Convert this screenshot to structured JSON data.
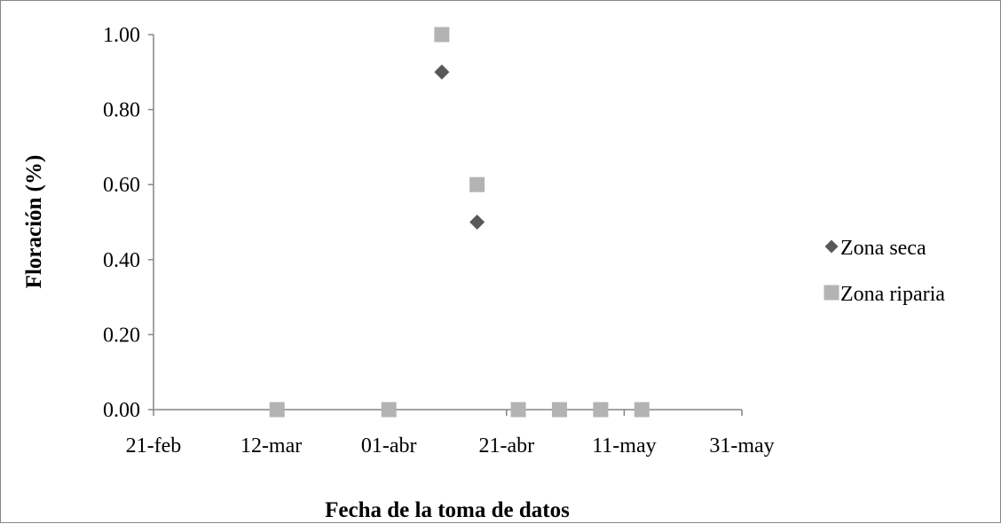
{
  "chart_data": {
    "type": "scatter",
    "xlabel": "Fecha de la toma de datos",
    "ylabel": "Floración (%)",
    "x_ticks": [
      "21-feb",
      "12-mar",
      "01-abr",
      "21-abr",
      "11-may",
      "31-may"
    ],
    "xlim": [
      "21-feb",
      "31-may"
    ],
    "ylim": [
      0,
      1
    ],
    "y_ticks": [
      "0.00",
      "0.20",
      "0.40",
      "0.60",
      "0.80",
      "1.00"
    ],
    "grid": false,
    "legend_position": "right",
    "series": [
      {
        "name": "Zona seca",
        "marker": "diamond",
        "color": "#595959",
        "points": [
          {
            "x": "13-mar",
            "y": 0
          },
          {
            "x": "01-abr",
            "y": 0
          },
          {
            "x": "10-abr",
            "y": 0.9
          },
          {
            "x": "16-abr",
            "y": 0.5
          },
          {
            "x": "23-abr",
            "y": 0
          },
          {
            "x": "30-abr",
            "y": 0
          },
          {
            "x": "07-may",
            "y": 0
          },
          {
            "x": "14-may",
            "y": 0
          }
        ]
      },
      {
        "name": "Zona riparia",
        "marker": "square",
        "color": "#b3b3b3",
        "points": [
          {
            "x": "13-mar",
            "y": 0
          },
          {
            "x": "01-abr",
            "y": 0
          },
          {
            "x": "10-abr",
            "y": 1
          },
          {
            "x": "16-abr",
            "y": 0.6
          },
          {
            "x": "23-abr",
            "y": 0
          },
          {
            "x": "30-abr",
            "y": 0
          },
          {
            "x": "07-may",
            "y": 0
          },
          {
            "x": "14-may",
            "y": 0
          }
        ]
      }
    ]
  }
}
